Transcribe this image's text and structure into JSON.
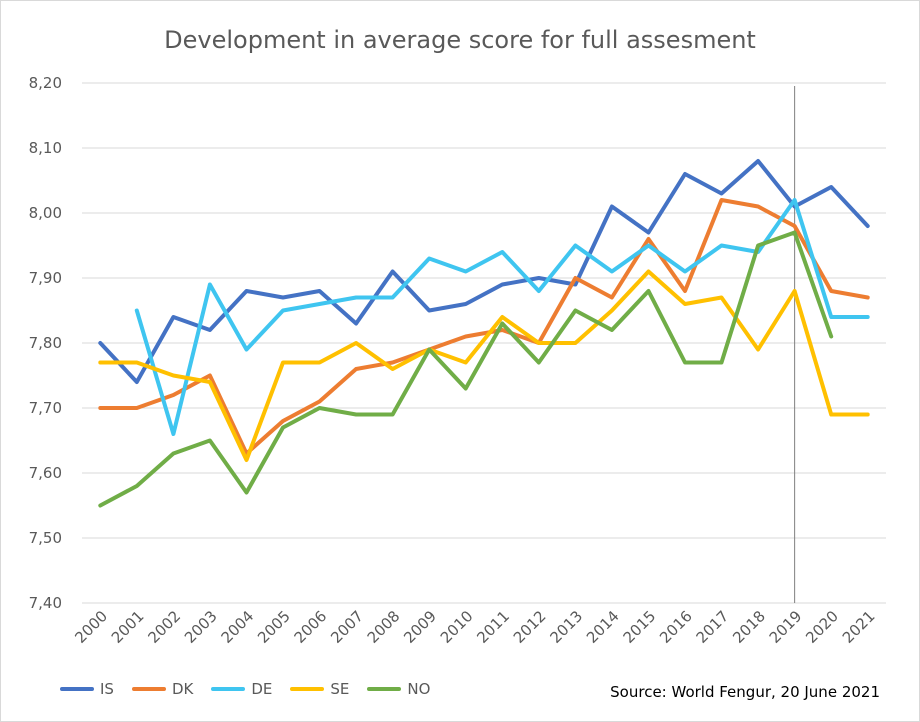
{
  "chart_data": {
    "type": "line",
    "title": "Development in average score for full assesment",
    "xlabel": "",
    "ylabel": "",
    "ylim": [
      7.4,
      8.2
    ],
    "yticks": [
      "7,40",
      "7,50",
      "7,60",
      "7,70",
      "7,80",
      "7,90",
      "8,00",
      "8,10",
      "8,20"
    ],
    "ytick_values": [
      7.4,
      7.5,
      7.6,
      7.7,
      7.8,
      7.9,
      8.0,
      8.1,
      8.2
    ],
    "grid": true,
    "legend_position": "bottom-left",
    "marker_line_at": "2019",
    "categories": [
      "2000",
      "2001",
      "2002",
      "2003",
      "2004",
      "2005",
      "2006",
      "2007",
      "2008",
      "2009",
      "2010",
      "2011",
      "2012",
      "2013",
      "2014",
      "2015",
      "2016",
      "2017",
      "2018",
      "2019",
      "2020",
      "2021"
    ],
    "series": [
      {
        "name": "IS",
        "color": "#4472c4",
        "values": [
          7.8,
          7.74,
          7.84,
          7.82,
          7.88,
          7.87,
          7.88,
          7.83,
          7.91,
          7.85,
          7.86,
          7.89,
          7.9,
          7.89,
          8.01,
          7.97,
          8.06,
          8.03,
          8.08,
          8.01,
          8.04,
          7.98
        ]
      },
      {
        "name": "DK",
        "color": "#ed7d31",
        "values": [
          7.7,
          7.7,
          7.72,
          7.75,
          7.63,
          7.68,
          7.71,
          7.76,
          7.77,
          7.79,
          7.81,
          7.82,
          7.8,
          7.9,
          7.87,
          7.96,
          7.88,
          8.02,
          8.01,
          7.98,
          7.88,
          7.87
        ]
      },
      {
        "name": "DE",
        "color": "#3fc5f0",
        "values": [
          null,
          7.85,
          7.66,
          7.89,
          7.79,
          7.85,
          7.86,
          7.87,
          7.87,
          7.93,
          7.91,
          7.94,
          7.88,
          7.95,
          7.91,
          7.95,
          7.91,
          7.95,
          7.94,
          8.02,
          7.84,
          7.84
        ]
      },
      {
        "name": "SE",
        "color": "#ffc000",
        "values": [
          7.77,
          7.77,
          7.75,
          7.74,
          7.62,
          7.77,
          7.77,
          7.8,
          7.76,
          7.79,
          7.77,
          7.84,
          7.8,
          7.8,
          7.85,
          7.91,
          7.86,
          7.87,
          7.79,
          7.88,
          7.69,
          7.69
        ]
      },
      {
        "name": "NO",
        "color": "#70ad47",
        "values": [
          7.55,
          7.58,
          7.63,
          7.65,
          7.57,
          7.67,
          7.7,
          7.69,
          7.69,
          7.79,
          7.73,
          7.83,
          7.77,
          7.85,
          7.82,
          7.88,
          7.77,
          7.77,
          7.95,
          7.97,
          7.81,
          null
        ]
      }
    ]
  },
  "source_text": "Source: World Fengur, 20 June 2021"
}
